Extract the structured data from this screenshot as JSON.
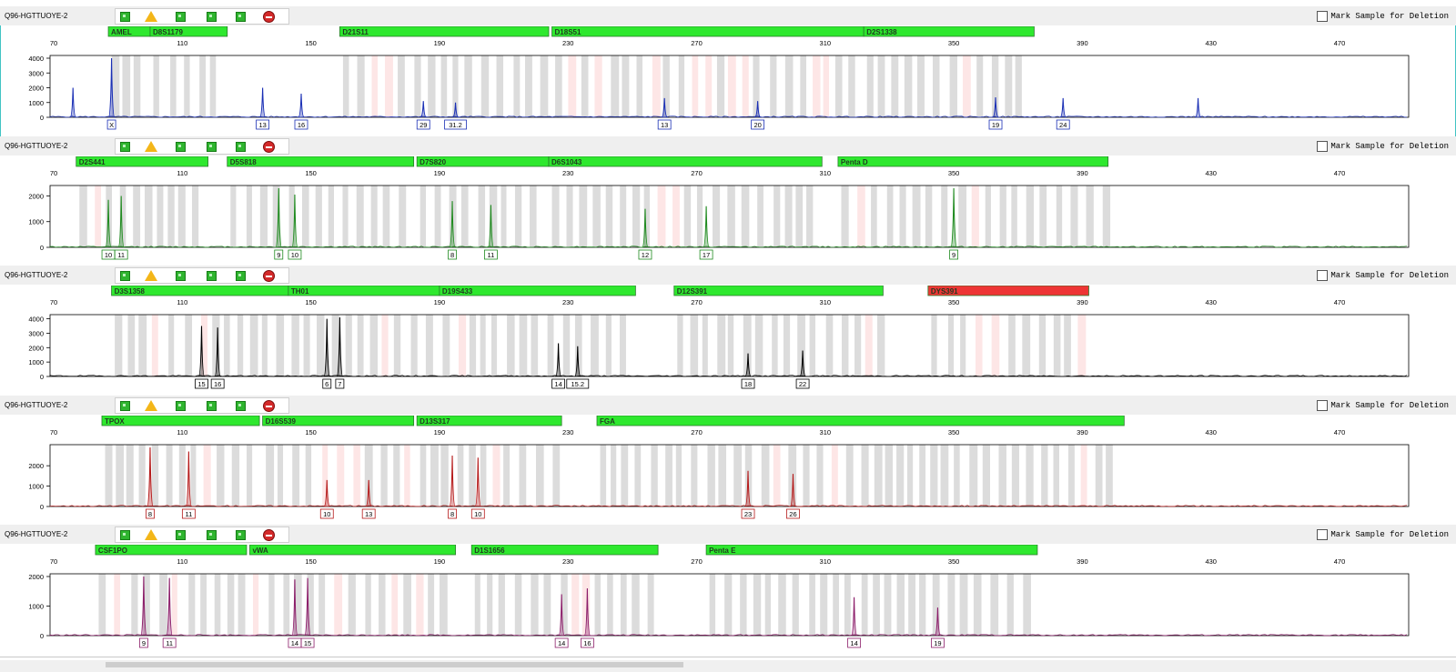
{
  "app": {
    "mark_label": "Mark Sample for Deletion"
  },
  "panels": [
    {
      "sample": "Q96-HGTTUOYE-2",
      "color": "#1a2fb5",
      "yticks": [
        "4000",
        "3000",
        "2000",
        "1000",
        "0"
      ],
      "ymax": 4000,
      "loci": [
        {
          "name": "AMEL",
          "from": 87,
          "to": 100,
          "color": "#2ee82e"
        },
        {
          "name": "D8S1179",
          "from": 100,
          "to": 124,
          "color": "#2ee82e"
        },
        {
          "name": "D21S11",
          "from": 159,
          "to": 224,
          "color": "#2ee82e"
        },
        {
          "name": "D18S51",
          "from": 225,
          "to": 322,
          "color": "#2ee82e"
        },
        {
          "name": "D2S1338",
          "from": 322,
          "to": 375,
          "color": "#2ee82e"
        }
      ],
      "peaks": [
        {
          "x": 76,
          "h": 2000,
          "label": ""
        },
        {
          "x": 88,
          "h": 4000,
          "label": "X"
        },
        {
          "x": 135,
          "h": 2000,
          "label": "13"
        },
        {
          "x": 147,
          "h": 1600,
          "label": "16"
        },
        {
          "x": 185,
          "h": 1100,
          "label": "29"
        },
        {
          "x": 195,
          "h": 1000,
          "label": "31.2"
        },
        {
          "x": 260,
          "h": 1300,
          "label": "13"
        },
        {
          "x": 289,
          "h": 1100,
          "label": "20"
        },
        {
          "x": 363,
          "h": 1350,
          "label": "19"
        },
        {
          "x": 384,
          "h": 1300,
          "label": "24"
        },
        {
          "x": 426,
          "h": 1300,
          "label": ""
        }
      ]
    },
    {
      "sample": "Q96-HGTTUOYE-2",
      "color": "#1f8a1f",
      "yticks": [
        "2000",
        "1000",
        "0"
      ],
      "ymax": 2300,
      "loci": [
        {
          "name": "D2S441",
          "from": 77,
          "to": 118,
          "color": "#2ee82e"
        },
        {
          "name": "D5S818",
          "from": 124,
          "to": 182,
          "color": "#2ee82e"
        },
        {
          "name": "D7S820",
          "from": 183,
          "to": 224,
          "color": "#2ee82e"
        },
        {
          "name": "D6S1043",
          "from": 224,
          "to": 309,
          "color": "#2ee82e"
        },
        {
          "name": "Penta D",
          "from": 314,
          "to": 398,
          "color": "#2ee82e"
        }
      ],
      "peaks": [
        {
          "x": 87,
          "h": 1850,
          "label": "10"
        },
        {
          "x": 91,
          "h": 2000,
          "label": "11"
        },
        {
          "x": 140,
          "h": 2300,
          "label": "9"
        },
        {
          "x": 145,
          "h": 2050,
          "label": "10"
        },
        {
          "x": 194,
          "h": 1800,
          "label": "8"
        },
        {
          "x": 206,
          "h": 1650,
          "label": "11"
        },
        {
          "x": 254,
          "h": 1500,
          "label": "12"
        },
        {
          "x": 273,
          "h": 1600,
          "label": "17"
        },
        {
          "x": 350,
          "h": 2300,
          "label": "9"
        }
      ]
    },
    {
      "sample": "Q96-HGTTUOYE-2",
      "color": "#000000",
      "yticks": [
        "4000",
        "3000",
        "2000",
        "1000",
        "0"
      ],
      "ymax": 4100,
      "loci": [
        {
          "name": "D3S1358",
          "from": 88,
          "to": 143,
          "color": "#2ee82e"
        },
        {
          "name": "TH01",
          "from": 143,
          "to": 190,
          "color": "#2ee82e"
        },
        {
          "name": "D19S433",
          "from": 190,
          "to": 251,
          "color": "#2ee82e"
        },
        {
          "name": "D12S391",
          "from": 263,
          "to": 328,
          "color": "#2ee82e"
        },
        {
          "name": "DYS391",
          "from": 342,
          "to": 392,
          "color": "#ee3535"
        }
      ],
      "peaks": [
        {
          "x": 116,
          "h": 3500,
          "label": "15"
        },
        {
          "x": 121,
          "h": 3400,
          "label": "16"
        },
        {
          "x": 155,
          "h": 4000,
          "label": "6"
        },
        {
          "x": 159,
          "h": 4100,
          "label": "7"
        },
        {
          "x": 227,
          "h": 2300,
          "label": "14"
        },
        {
          "x": 233,
          "h": 2100,
          "label": "15.2"
        },
        {
          "x": 286,
          "h": 1600,
          "label": "18"
        },
        {
          "x": 303,
          "h": 1800,
          "label": "22"
        }
      ]
    },
    {
      "sample": "Q96-HGTTUOYE-2",
      "color": "#b51a1a",
      "yticks": [
        "2000",
        "1000",
        "0"
      ],
      "ymax": 2900,
      "loci": [
        {
          "name": "TPOX",
          "from": 85,
          "to": 134,
          "color": "#2ee82e"
        },
        {
          "name": "D16S539",
          "from": 135,
          "to": 182,
          "color": "#2ee82e"
        },
        {
          "name": "D13S317",
          "from": 183,
          "to": 228,
          "color": "#2ee82e"
        },
        {
          "name": "FGA",
          "from": 239,
          "to": 403,
          "color": "#2ee82e"
        }
      ],
      "peaks": [
        {
          "x": 100,
          "h": 2900,
          "label": "8"
        },
        {
          "x": 112,
          "h": 2700,
          "label": "11"
        },
        {
          "x": 155,
          "h": 1300,
          "label": "10"
        },
        {
          "x": 168,
          "h": 1300,
          "label": "13"
        },
        {
          "x": 194,
          "h": 2500,
          "label": "8"
        },
        {
          "x": 202,
          "h": 2400,
          "label": "10"
        },
        {
          "x": 286,
          "h": 1750,
          "label": "23"
        },
        {
          "x": 300,
          "h": 1600,
          "label": "26"
        }
      ]
    },
    {
      "sample": "Q96-HGTTUOYE-2",
      "color": "#8c1e6a",
      "yticks": [
        "2000",
        "1000",
        "0"
      ],
      "ymax": 2000,
      "loci": [
        {
          "name": "CSF1PO",
          "from": 83,
          "to": 130,
          "color": "#2ee82e"
        },
        {
          "name": "vWA",
          "from": 131,
          "to": 195,
          "color": "#2ee82e"
        },
        {
          "name": "D1S1656",
          "from": 200,
          "to": 258,
          "color": "#2ee82e"
        },
        {
          "name": "Penta E",
          "from": 273,
          "to": 376,
          "color": "#2ee82e"
        }
      ],
      "peaks": [
        {
          "x": 98,
          "h": 2000,
          "label": "9"
        },
        {
          "x": 106,
          "h": 1950,
          "label": "11"
        },
        {
          "x": 145,
          "h": 1900,
          "label": "14"
        },
        {
          "x": 149,
          "h": 1950,
          "label": "15"
        },
        {
          "x": 228,
          "h": 1400,
          "label": "14"
        },
        {
          "x": 236,
          "h": 1600,
          "label": "16"
        },
        {
          "x": 319,
          "h": 1300,
          "label": "14"
        },
        {
          "x": 345,
          "h": 950,
          "label": "19"
        }
      ]
    }
  ],
  "xticks": [
    "70",
    "110",
    "150",
    "190",
    "230",
    "270",
    "310",
    "350",
    "390",
    "430",
    "470"
  ]
}
